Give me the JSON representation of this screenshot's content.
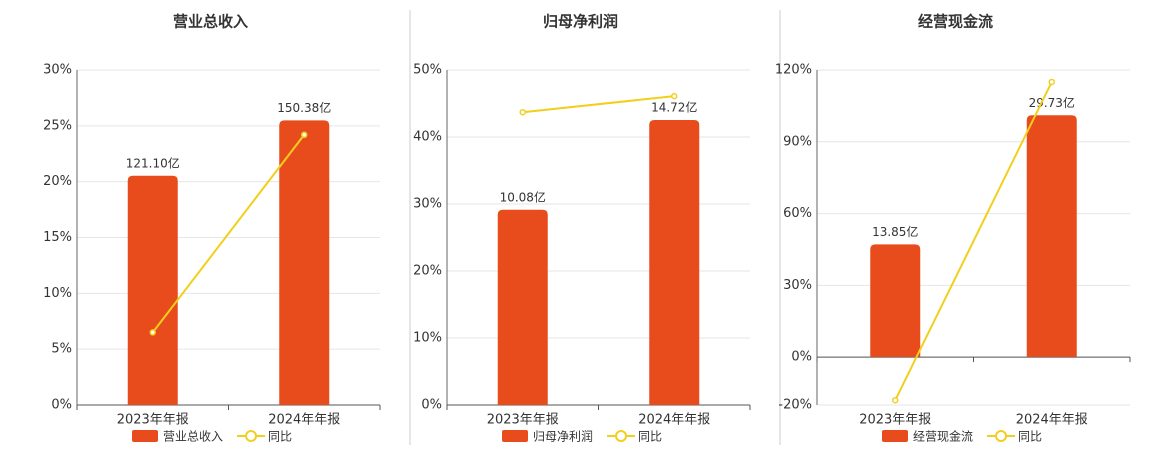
{
  "chart_data": [
    {
      "type": "bar",
      "title": "营业总收入",
      "categories": [
        "2023年年报",
        "2024年年报"
      ],
      "series": [
        {
          "name": "营业总收入",
          "type": "bar",
          "axis": "y2",
          "color": "#e84c1c",
          "values": [
            121.1,
            150.38
          ],
          "value_labels": [
            "121.10亿",
            "150.38亿"
          ]
        },
        {
          "name": "同比",
          "type": "line",
          "color": "#f2cf1d",
          "values": [
            6.5,
            24.2
          ]
        }
      ],
      "ylim": [
        0,
        30
      ],
      "yticks": [
        {
          "value": 0,
          "label": "0%"
        },
        {
          "value": 5,
          "label": "5%"
        },
        {
          "value": 10,
          "label": "10%"
        },
        {
          "value": 15,
          "label": "15%"
        },
        {
          "value": 20,
          "label": "20%"
        },
        {
          "value": 25,
          "label": "25%"
        },
        {
          "value": 30,
          "label": "30%"
        }
      ],
      "y2lim": [
        0,
        177
      ],
      "grid": true
    },
    {
      "type": "bar",
      "title": "归母净利润",
      "categories": [
        "2023年年报",
        "2024年年报"
      ],
      "series": [
        {
          "name": "归母净利润",
          "type": "bar",
          "axis": "y2",
          "color": "#e84c1c",
          "values": [
            10.08,
            14.72
          ],
          "value_labels": [
            "10.08亿",
            "14.72亿"
          ]
        },
        {
          "name": "同比",
          "type": "line",
          "color": "#f2cf1d",
          "values": [
            43.7,
            46.1
          ]
        }
      ],
      "ylim": [
        0,
        50
      ],
      "yticks": [
        {
          "value": 0,
          "label": "0%"
        },
        {
          "value": 10,
          "label": "10%"
        },
        {
          "value": 20,
          "label": "20%"
        },
        {
          "value": 30,
          "label": "30%"
        },
        {
          "value": 40,
          "label": "40%"
        },
        {
          "value": 50,
          "label": "50%"
        }
      ],
      "y2lim": [
        0,
        17.3
      ],
      "grid": true
    },
    {
      "type": "bar",
      "title": "经营现金流",
      "categories": [
        "2023年年报",
        "2024年年报"
      ],
      "series": [
        {
          "name": "经营现金流",
          "type": "bar",
          "axis": "y2",
          "color": "#e84c1c",
          "values": [
            13.85,
            29.73
          ],
          "value_labels": [
            "13.85亿",
            "29.73亿"
          ]
        },
        {
          "name": "同比",
          "type": "line",
          "color": "#f2cf1d",
          "values": [
            -18,
            115
          ]
        }
      ],
      "ylim": [
        -20,
        120
      ],
      "yticks": [
        {
          "value": -20,
          "label": "-20%"
        },
        {
          "value": 0,
          "label": "0%"
        },
        {
          "value": 30,
          "label": "30%"
        },
        {
          "value": 60,
          "label": "60%"
        },
        {
          "value": 90,
          "label": "90%"
        },
        {
          "value": 120,
          "label": "120%"
        }
      ],
      "y2lim": [
        -5.9,
        35.3
      ],
      "grid": true
    }
  ]
}
